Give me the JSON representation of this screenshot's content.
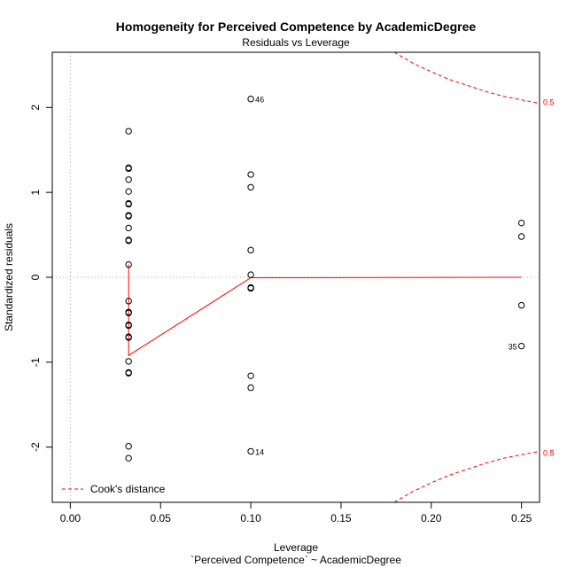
{
  "chart_data": {
    "type": "scatter",
    "title": "Homogeneity for Perceived Competence by AcademicDegree",
    "subtitle": "Residuals vs Leverage",
    "xlabel": "Leverage",
    "xlabel2": "`Perceived Competence` ~ AcademicDegree",
    "ylabel": "Standardized residuals",
    "xlim": [
      -0.01,
      0.26
    ],
    "ylim": [
      -2.65,
      2.65
    ],
    "xticks": [
      0.0,
      0.05,
      0.1,
      0.15,
      0.2,
      0.25
    ],
    "xtick_labels": [
      "0.00",
      "0.05",
      "0.10",
      "0.15",
      "0.20",
      "0.25"
    ],
    "yticks": [
      -2,
      -1,
      0,
      1,
      2
    ],
    "ytick_labels": [
      "-2",
      "-1",
      "0",
      "1",
      "2"
    ],
    "points": [
      {
        "x": 0.0323,
        "y": 1.72
      },
      {
        "x": 0.0323,
        "y": 1.29
      },
      {
        "x": 0.0323,
        "y": 1.28
      },
      {
        "x": 0.0323,
        "y": 1.15
      },
      {
        "x": 0.0323,
        "y": 1.01
      },
      {
        "x": 0.0323,
        "y": 0.87
      },
      {
        "x": 0.0323,
        "y": 0.86
      },
      {
        "x": 0.0323,
        "y": 0.73
      },
      {
        "x": 0.0323,
        "y": 0.72
      },
      {
        "x": 0.0323,
        "y": 0.58
      },
      {
        "x": 0.0323,
        "y": 0.44
      },
      {
        "x": 0.0323,
        "y": 0.43
      },
      {
        "x": 0.0323,
        "y": 0.15
      },
      {
        "x": 0.0323,
        "y": -0.28
      },
      {
        "x": 0.0323,
        "y": -0.42
      },
      {
        "x": 0.0323,
        "y": -0.41
      },
      {
        "x": 0.0323,
        "y": -0.56
      },
      {
        "x": 0.0323,
        "y": -0.57
      },
      {
        "x": 0.0323,
        "y": -0.7
      },
      {
        "x": 0.0323,
        "y": -0.71
      },
      {
        "x": 0.0323,
        "y": -0.99
      },
      {
        "x": 0.0323,
        "y": -1.12
      },
      {
        "x": 0.0323,
        "y": -1.13
      },
      {
        "x": 0.0323,
        "y": -1.99
      },
      {
        "x": 0.0323,
        "y": -2.13
      },
      {
        "x": 0.1,
        "y": 2.1,
        "label": "46"
      },
      {
        "x": 0.1,
        "y": 1.21
      },
      {
        "x": 0.1,
        "y": 1.06
      },
      {
        "x": 0.1,
        "y": 0.32
      },
      {
        "x": 0.1,
        "y": 0.03
      },
      {
        "x": 0.1,
        "y": -0.12
      },
      {
        "x": 0.1,
        "y": -0.13
      },
      {
        "x": 0.1,
        "y": -1.16
      },
      {
        "x": 0.1,
        "y": -1.3
      },
      {
        "x": 0.1,
        "y": -2.05,
        "label": "14"
      },
      {
        "x": 0.25,
        "y": 0.64
      },
      {
        "x": 0.25,
        "y": 0.48
      },
      {
        "x": 0.25,
        "y": -0.33
      },
      {
        "x": 0.25,
        "y": -0.81,
        "label": "35"
      }
    ],
    "smooth_line": [
      {
        "x": 0.0323,
        "y": 0.15
      },
      {
        "x": 0.0323,
        "y": -0.92
      },
      {
        "x": 0.1,
        "y": -0.005
      },
      {
        "x": 0.25,
        "y": 0.0
      }
    ],
    "cooks_distance": {
      "level": 0.5,
      "label": "0.5",
      "upper": [
        {
          "x": 0.1795,
          "y": 2.65
        },
        {
          "x": 0.19,
          "y": 2.52
        },
        {
          "x": 0.2,
          "y": 2.42
        },
        {
          "x": 0.21,
          "y": 2.33
        },
        {
          "x": 0.22,
          "y": 2.26
        },
        {
          "x": 0.23,
          "y": 2.19
        },
        {
          "x": 0.24,
          "y": 2.13
        },
        {
          "x": 0.25,
          "y": 2.09
        },
        {
          "x": 0.26,
          "y": 2.05
        }
      ],
      "lower": [
        {
          "x": 0.1795,
          "y": -2.65
        },
        {
          "x": 0.19,
          "y": -2.52
        },
        {
          "x": 0.2,
          "y": -2.42
        },
        {
          "x": 0.21,
          "y": -2.33
        },
        {
          "x": 0.22,
          "y": -2.26
        },
        {
          "x": 0.23,
          "y": -2.19
        },
        {
          "x": 0.24,
          "y": -2.13
        },
        {
          "x": 0.25,
          "y": -2.09
        },
        {
          "x": 0.26,
          "y": -2.05
        }
      ],
      "upper_label_y": 2.06,
      "lower_label_y": -2.07
    },
    "legend": {
      "position": "bottom-left",
      "entries": [
        "Cook's distance"
      ]
    },
    "colors": {
      "points": "#000000",
      "smooth": "#ff0000",
      "cooks": "#ff0000",
      "reference": "#aaaaaa"
    },
    "grid": false
  }
}
